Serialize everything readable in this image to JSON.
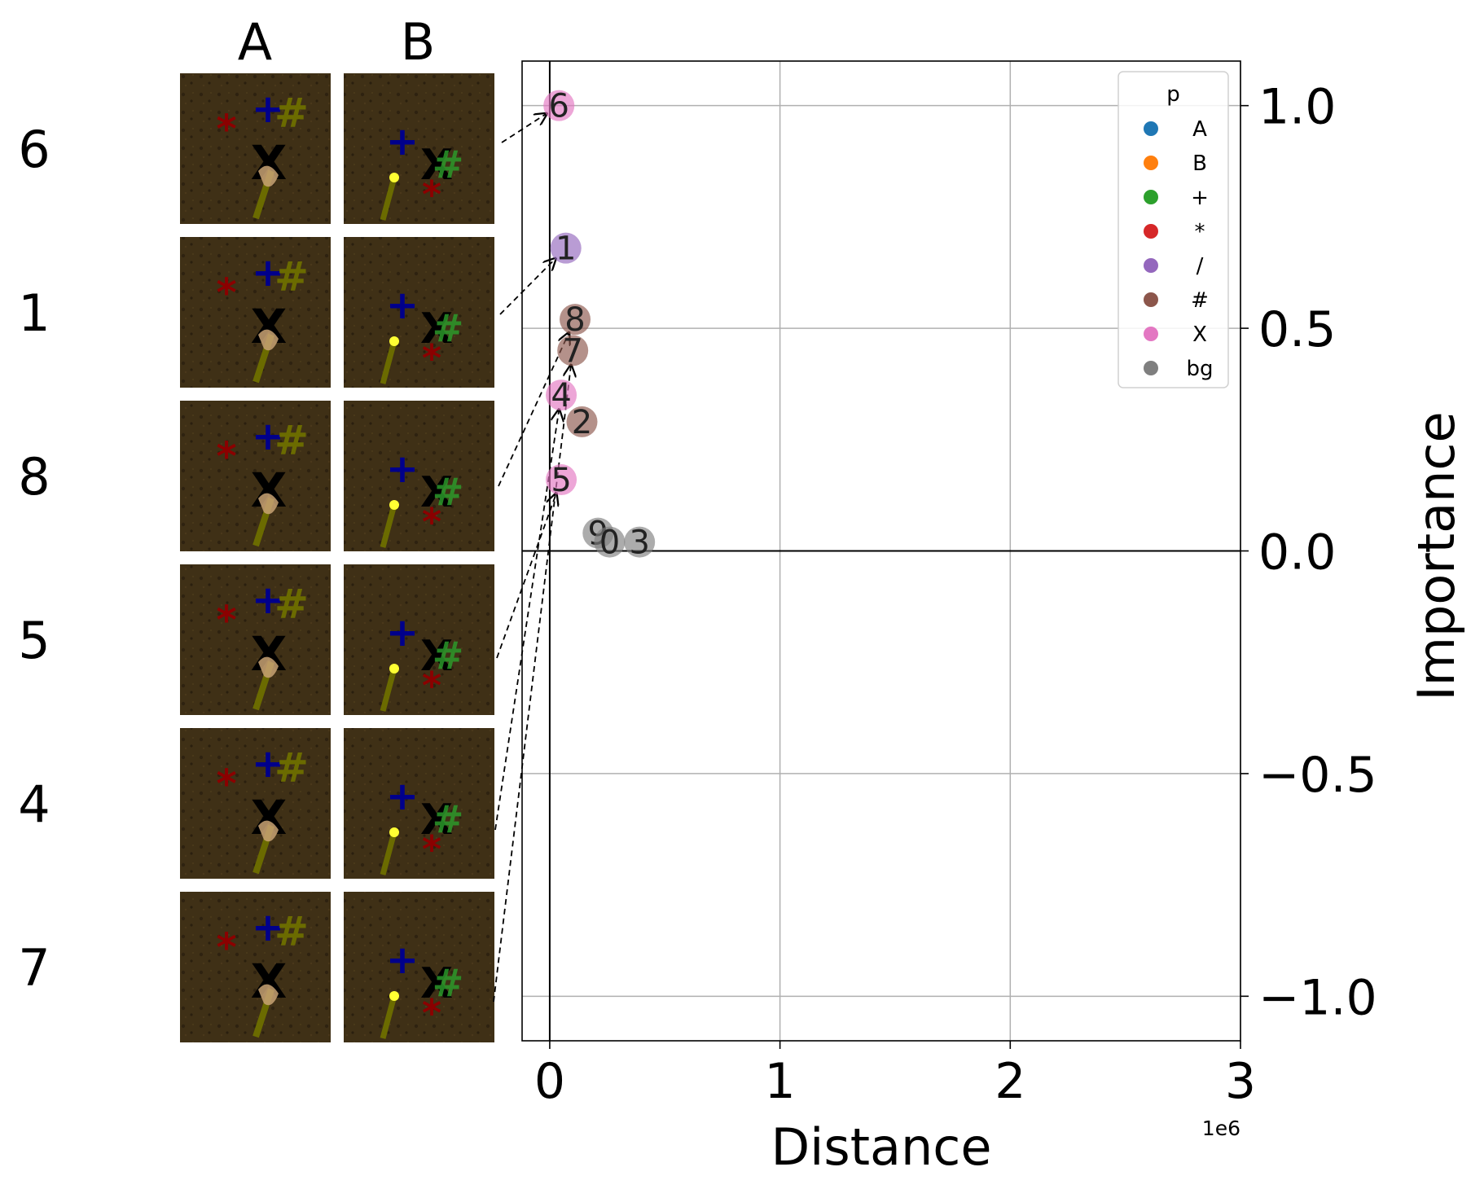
{
  "panel": {
    "column_headers": [
      "A",
      "B"
    ],
    "row_labels": [
      "6",
      "1",
      "8",
      "5",
      "4",
      "7"
    ]
  },
  "chart_data": {
    "type": "scatter",
    "xlabel": "Distance",
    "ylabel": "Importance",
    "x_offset_text": "1e6",
    "xlim": [
      -0.12,
      3.0
    ],
    "ylim": [
      -1.1,
      1.1
    ],
    "xticks": [
      0,
      1,
      2,
      3
    ],
    "yticks": [
      -1.0,
      -0.5,
      0.0,
      0.5,
      1.0
    ],
    "xtick_labels": [
      "0",
      "1",
      "2",
      "3"
    ],
    "ytick_labels": [
      "−1.0",
      "−0.5",
      "0.0",
      "0.5",
      "1.0"
    ],
    "grid": true,
    "legend": {
      "title": "p",
      "placement": "top-right",
      "entries": [
        {
          "label": "A",
          "color": "#1f77b4"
        },
        {
          "label": "B",
          "color": "#ff7f0e"
        },
        {
          "label": "+",
          "color": "#2ca02c"
        },
        {
          "label": "*",
          "color": "#d62728"
        },
        {
          "label": "/",
          "color": "#9467bd"
        },
        {
          "label": "#",
          "color": "#8c564b"
        },
        {
          "label": "X",
          "color": "#e377c2"
        },
        {
          "label": "bg",
          "color": "#7f7f7f"
        }
      ]
    },
    "points": [
      {
        "label": "6",
        "x": 0.04,
        "y": 1.0,
        "class": "X"
      },
      {
        "label": "1",
        "x": 0.07,
        "y": 0.68,
        "class": "/"
      },
      {
        "label": "8",
        "x": 0.11,
        "y": 0.52,
        "class": "#"
      },
      {
        "label": "7",
        "x": 0.1,
        "y": 0.45,
        "class": "#"
      },
      {
        "label": "4",
        "x": 0.05,
        "y": 0.35,
        "class": "X"
      },
      {
        "label": "2",
        "x": 0.14,
        "y": 0.29,
        "class": "#"
      },
      {
        "label": "5",
        "x": 0.05,
        "y": 0.16,
        "class": "X"
      },
      {
        "label": "9",
        "x": 0.21,
        "y": 0.04,
        "class": "bg"
      },
      {
        "label": "0",
        "x": 0.26,
        "y": 0.02,
        "class": "bg"
      },
      {
        "label": "3",
        "x": 0.39,
        "y": 0.02,
        "class": "bg"
      }
    ]
  }
}
